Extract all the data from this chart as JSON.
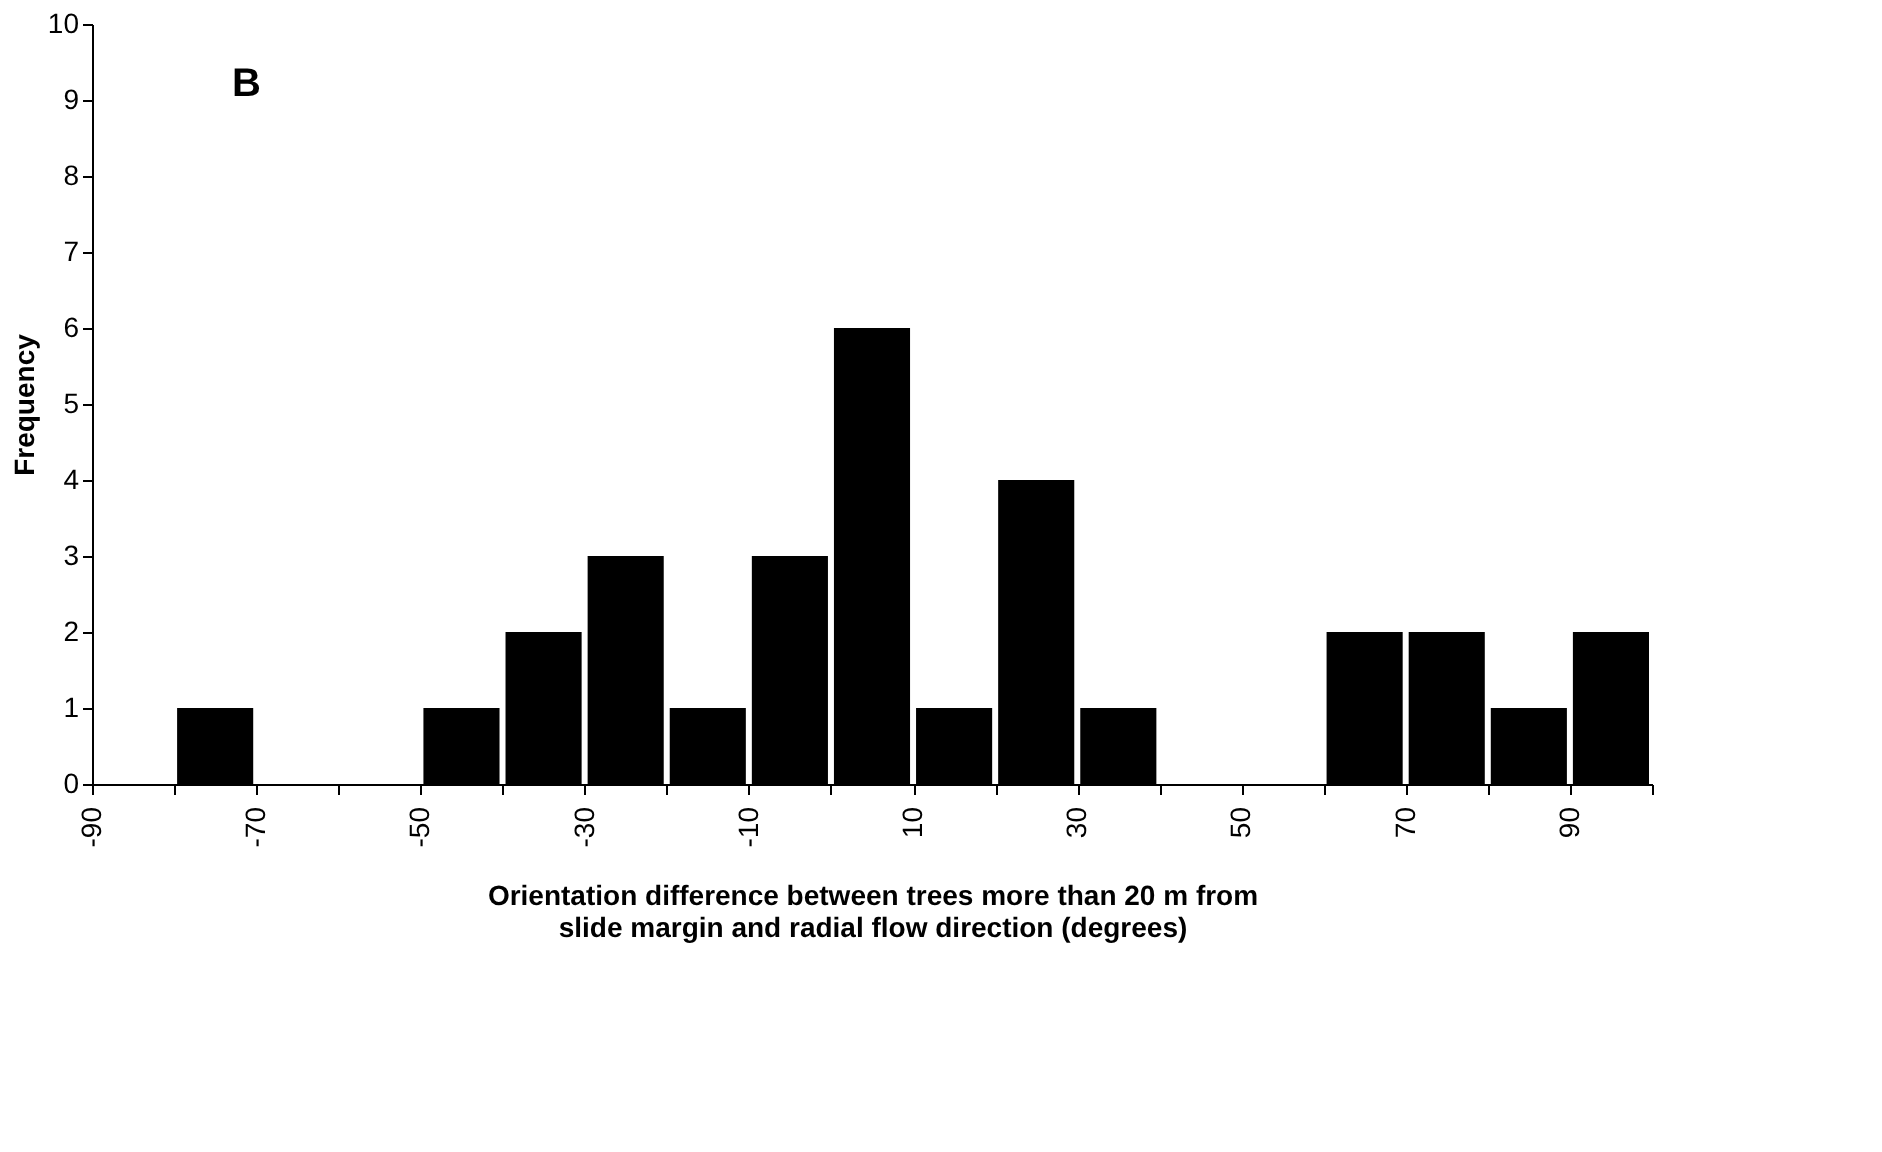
{
  "chart_data": {
    "type": "histogram",
    "xlabel": "Orientation difference between trees more than 20 m from slide margin and radial flow direction (degrees)",
    "ylabel": "Frequency",
    "annotations": [
      "B"
    ],
    "bins": [
      -90,
      -80,
      -70,
      -60,
      -50,
      -40,
      -30,
      -20,
      -10,
      0,
      10,
      20,
      30,
      40,
      50,
      60,
      70,
      80,
      90,
      100
    ],
    "values": [
      0,
      1,
      0,
      0,
      1,
      2,
      3,
      1,
      3,
      6,
      1,
      4,
      1,
      0,
      0,
      2,
      2,
      1,
      2
    ],
    "color": "#000000",
    "xlim": [
      -90,
      100
    ],
    "xticks": [
      -90,
      {
        "value": -80,
        "label": null
      },
      -70,
      {
        "value": -60,
        "label": null
      },
      -50,
      {
        "value": -40,
        "label": null
      },
      -30,
      {
        "value": -20,
        "label": null
      },
      -10,
      {
        "value": 0,
        "label": null
      },
      10,
      {
        "value": 20,
        "label": null
      },
      30,
      {
        "value": 40,
        "label": null
      },
      50,
      {
        "value": 60,
        "label": null
      },
      70,
      {
        "value": 80,
        "label": null
      },
      90,
      {
        "value": 100,
        "label": null
      }
    ],
    "ylim": [
      0,
      10
    ],
    "yticks": [
      0,
      1,
      2,
      3,
      4,
      5,
      6,
      7,
      8,
      9,
      10
    ],
    "grid": false
  }
}
